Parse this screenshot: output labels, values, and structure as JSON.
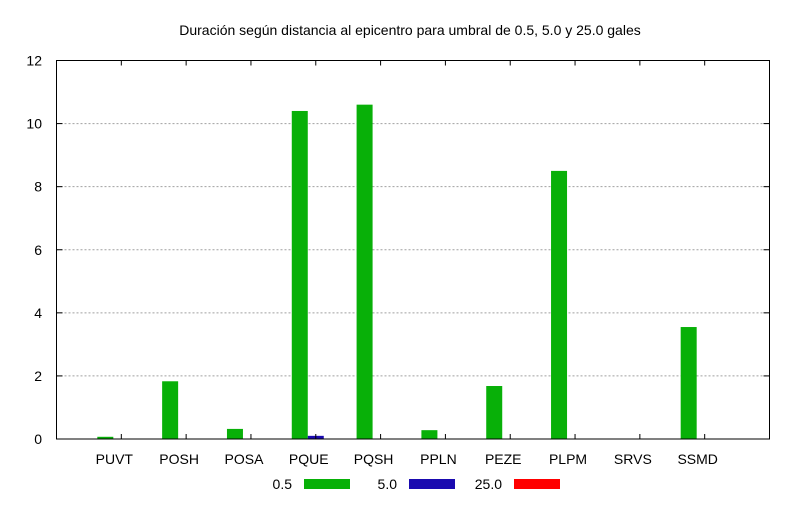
{
  "chart_data": {
    "type": "bar",
    "title": "Duración según distancia al epicentro para umbral de 0.5, 5.0 y 25.0 gales",
    "xlabel": "",
    "ylabel": "",
    "categories": [
      "PUVT",
      "POSH",
      "POSA",
      "PQUE",
      "PQSH",
      "PPLN",
      "PEZE",
      "PLPM",
      "SRVS",
      "SSMD"
    ],
    "series": [
      {
        "name": "0.5",
        "color": "#08b008",
        "values": [
          0.07,
          1.83,
          0.32,
          10.4,
          10.6,
          0.28,
          1.68,
          8.5,
          0,
          3.55
        ]
      },
      {
        "name": "5.0",
        "color": "#1a0ab0",
        "values": [
          0,
          0,
          0,
          0.1,
          0,
          0,
          0,
          0,
          0,
          0
        ]
      },
      {
        "name": "25.0",
        "color": "#ff0000",
        "values": [
          0,
          0,
          0,
          0,
          0,
          0,
          0,
          0,
          0,
          0
        ]
      }
    ],
    "ylim": [
      0,
      12
    ],
    "yticks": [
      "0",
      "2",
      "4",
      "6",
      "8",
      "10",
      "12"
    ],
    "grid": true,
    "legend_position": "bottom-center"
  }
}
